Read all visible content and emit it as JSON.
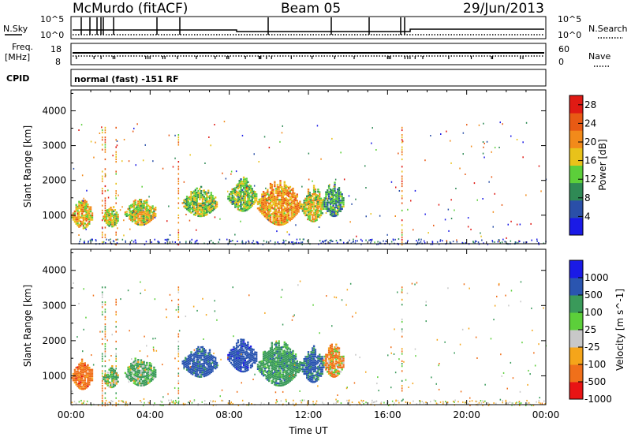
{
  "header": {
    "station": "McMurdo (fitACF)",
    "beam": "Beam 05",
    "date": "29/Jun/2013"
  },
  "strip_labels": {
    "nsky": "N.Sky",
    "nsky_hi": "10^5",
    "nsky_lo": "10^0",
    "nsearch": "N.Search",
    "nsearch_hi": "10^5",
    "nsearch_lo": "10^0",
    "freq_1": "Freq.",
    "freq_2": "[MHz]",
    "freq_hi": "18",
    "freq_lo": "8",
    "nave": "Nave",
    "nave_hi": "60",
    "nave_lo": "0",
    "cpid": "CPID",
    "cpid_text": "normal (fast) -151 RF"
  },
  "colors": {
    "power": [
      "#1a1ae6",
      "#2a4fa8",
      "#2f8a55",
      "#5ccf3a",
      "#e8c21a",
      "#f28a1a",
      "#e85a14",
      "#e01a14"
    ],
    "velocity": [
      "#e81414",
      "#f0701a",
      "#f5a51a",
      "#c8c8c8",
      "#5ccf3a",
      "#3a9a5a",
      "#2a55b0",
      "#1a1ae6"
    ]
  },
  "chart_data": [
    {
      "type": "heatmap",
      "title": "Power",
      "ylabel": "Slant Range [km]",
      "xlabel": "Time UT",
      "xlim": [
        "00:00",
        "24:00"
      ],
      "ylim": [
        180,
        4600
      ],
      "x_ticks": [
        "00:00",
        "04:00",
        "08:00",
        "12:00",
        "16:00",
        "20:00",
        "00:00"
      ],
      "y_ticks": [
        "1000",
        "2000",
        "3000",
        "4000"
      ],
      "colorbar": {
        "label": "Power [dB]",
        "ticks": [
          "4",
          "8",
          "12",
          "16",
          "20",
          "24",
          "28"
        ],
        "range": [
          0,
          30
        ]
      },
      "patches": [
        {
          "t0": 0.0,
          "t1": 1.1,
          "r0": 600,
          "r1": 1500,
          "value": 18
        },
        {
          "t0": 1.6,
          "t1": 2.4,
          "r0": 650,
          "r1": 1300,
          "value": 15
        },
        {
          "t0": 2.7,
          "t1": 4.3,
          "r0": 700,
          "r1": 1550,
          "value": 16
        },
        {
          "t0": 5.6,
          "t1": 7.4,
          "r0": 950,
          "r1": 1850,
          "value": 14
        },
        {
          "t0": 7.9,
          "t1": 9.4,
          "r0": 1100,
          "r1": 2100,
          "value": 13
        },
        {
          "t0": 9.4,
          "t1": 11.6,
          "r0": 700,
          "r1": 2050,
          "value": 20
        },
        {
          "t0": 11.6,
          "t1": 12.8,
          "r0": 800,
          "r1": 1850,
          "value": 16
        },
        {
          "t0": 12.7,
          "t1": 13.8,
          "r0": 950,
          "r1": 1950,
          "value": 10
        }
      ]
    },
    {
      "type": "heatmap",
      "title": "Velocity",
      "ylabel": "Slant Range [km]",
      "xlabel": "Time UT",
      "xlim": [
        "00:00",
        "24:00"
      ],
      "ylim": [
        180,
        4600
      ],
      "x_ticks": [
        "00:00",
        "04:00",
        "08:00",
        "12:00",
        "16:00",
        "20:00",
        "00:00"
      ],
      "y_ticks": [
        "1000",
        "2000",
        "3000",
        "4000"
      ],
      "colorbar": {
        "label": "Velocity [m s^-1]",
        "ticks": [
          "1000",
          "500",
          "100",
          "25",
          "-25",
          "-100",
          "-500",
          "-1000"
        ],
        "range": [
          -1000,
          1000
        ]
      },
      "patches": [
        {
          "t0": 0.0,
          "t1": 1.1,
          "r0": 600,
          "r1": 1500,
          "value": -300
        },
        {
          "t0": 1.6,
          "t1": 2.4,
          "r0": 650,
          "r1": 1300,
          "value": 150
        },
        {
          "t0": 2.7,
          "t1": 4.3,
          "r0": 700,
          "r1": 1550,
          "value": 200
        },
        {
          "t0": 5.6,
          "t1": 7.4,
          "r0": 950,
          "r1": 1850,
          "value": 700
        },
        {
          "t0": 7.9,
          "t1": 9.4,
          "r0": 1100,
          "r1": 2100,
          "value": 800
        },
        {
          "t0": 9.4,
          "t1": 11.6,
          "r0": 700,
          "r1": 2050,
          "value": 300
        },
        {
          "t0": 11.6,
          "t1": 12.8,
          "r0": 800,
          "r1": 1850,
          "value": 600
        },
        {
          "t0": 12.7,
          "t1": 13.8,
          "r0": 950,
          "r1": 1950,
          "value": -150
        }
      ]
    }
  ]
}
